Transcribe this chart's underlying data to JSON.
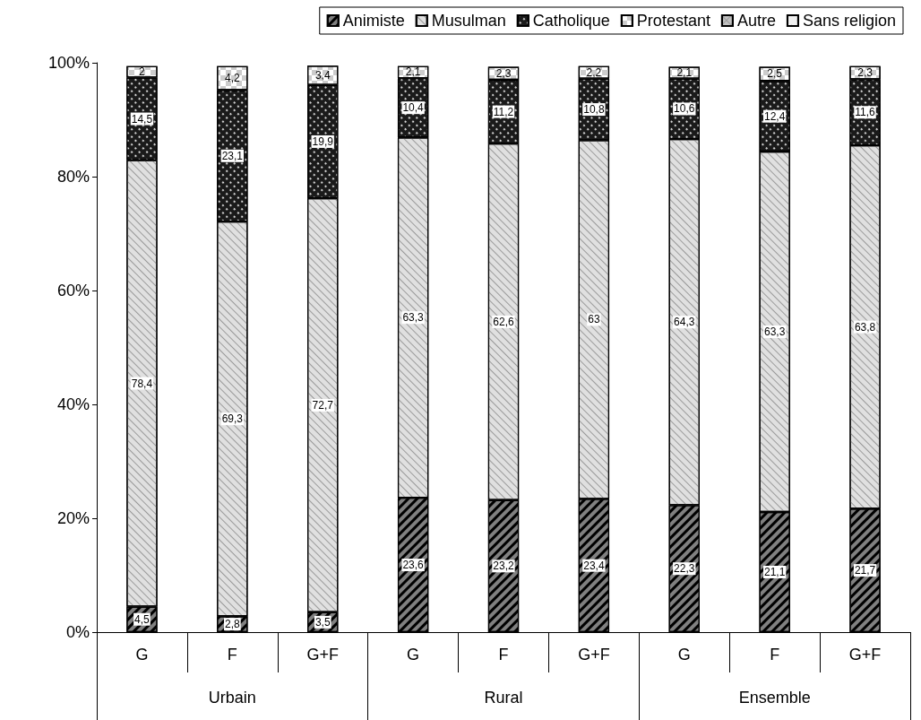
{
  "chart_data": {
    "type": "bar",
    "stacked": true,
    "categories": [
      "G",
      "F",
      "G+F",
      "G",
      "F",
      "G+F",
      "G",
      "F",
      "G+F"
    ],
    "annotations": [
      "Urbain",
      "Rural",
      "Ensemble"
    ],
    "series": [
      {
        "name": "Animiste",
        "color": "#808080",
        "values": [
          4.5,
          2.8,
          3.5,
          23.6,
          23.2,
          23.4,
          22.3,
          21.1,
          21.7
        ],
        "value_labels": [
          "4,5",
          "2,8",
          "3,5",
          "23,6",
          "23,2",
          "23,4",
          "22,3",
          "21,1",
          "21,7"
        ]
      },
      {
        "name": "Musulman",
        "color": "#e0e0e0",
        "values": [
          78.4,
          69.3,
          72.7,
          63.3,
          62.6,
          63,
          64.3,
          63.3,
          63.8
        ],
        "value_labels": [
          "78,4",
          "69,3",
          "72,7",
          "63,3",
          "62,6",
          "63",
          "64,3",
          "63,3",
          "63,8"
        ]
      },
      {
        "name": "Catholique",
        "color": "#1a1a1a",
        "values": [
          14.5,
          23.1,
          19.9,
          10.4,
          11.2,
          10.8,
          10.6,
          12.4,
          11.6
        ],
        "value_labels": [
          "14,5",
          "23,1",
          "19,9",
          "10,4",
          "11,2",
          "10,8",
          "10,6",
          "12,4",
          "11,6"
        ]
      },
      {
        "name": "Protestant",
        "color": "#ffffff",
        "values": [
          2,
          4.2,
          3.4,
          2.1,
          2.3,
          2.2,
          2.1,
          2.5,
          2.3
        ],
        "value_labels": [
          "2",
          "4,2",
          "3,4",
          "2,1",
          "2,3",
          "2,2",
          "2,1",
          "2,5",
          "2,3"
        ]
      },
      {
        "name": "Autre",
        "color": "#c0c0c0",
        "values": [
          null,
          null,
          null,
          null,
          null,
          null,
          null,
          null,
          null
        ]
      },
      {
        "name": "Sans religion",
        "color": "#f0f0f0",
        "values": [
          null,
          null,
          null,
          null,
          null,
          null,
          null,
          null,
          null
        ]
      }
    ],
    "ylim": [
      0,
      100
    ],
    "yticks": [
      {
        "value": 0,
        "label": "0%"
      },
      {
        "value": 20,
        "label": "20%"
      },
      {
        "value": 40,
        "label": "40%"
      },
      {
        "value": 60,
        "label": "60%"
      },
      {
        "value": 80,
        "label": "80%"
      },
      {
        "value": 100,
        "label": "100%"
      }
    ],
    "grid": false,
    "legend": "top right"
  }
}
